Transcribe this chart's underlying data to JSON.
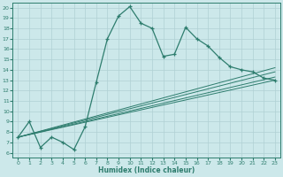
{
  "xlabel": "Humidex (Indice chaleur)",
  "bg_color": "#cce8ea",
  "grid_color": "#b0d0d4",
  "line_color": "#2e7d6e",
  "xlim": [
    -0.5,
    23.5
  ],
  "ylim": [
    5.5,
    20.5
  ],
  "xticks": [
    0,
    1,
    2,
    3,
    4,
    5,
    6,
    7,
    8,
    9,
    10,
    11,
    12,
    13,
    14,
    15,
    16,
    17,
    18,
    19,
    20,
    21,
    22,
    23
  ],
  "yticks": [
    6,
    7,
    8,
    9,
    10,
    11,
    12,
    13,
    14,
    15,
    16,
    17,
    18,
    19,
    20
  ],
  "main_x": [
    0,
    1,
    2,
    3,
    4,
    5,
    6,
    7,
    8,
    9,
    10,
    11,
    12,
    13,
    14,
    15,
    16,
    17,
    18,
    19,
    20,
    21,
    22,
    23
  ],
  "main_y": [
    7.5,
    9.0,
    6.5,
    7.5,
    7.0,
    6.3,
    8.5,
    12.8,
    17.0,
    19.2,
    20.1,
    18.5,
    18.0,
    15.3,
    15.5,
    18.1,
    17.0,
    16.3,
    15.2,
    14.3,
    14.0,
    13.8,
    13.2,
    13.0
  ],
  "fan_lines": [
    {
      "x0": 0,
      "y0": 7.5,
      "x1": 23,
      "y1": 13.0
    },
    {
      "x0": 0,
      "y0": 7.5,
      "x1": 23,
      "y1": 13.3
    },
    {
      "x0": 0,
      "y0": 7.5,
      "x1": 23,
      "y1": 13.8
    },
    {
      "x0": 0,
      "y0": 7.5,
      "x1": 23,
      "y1": 14.2
    }
  ]
}
